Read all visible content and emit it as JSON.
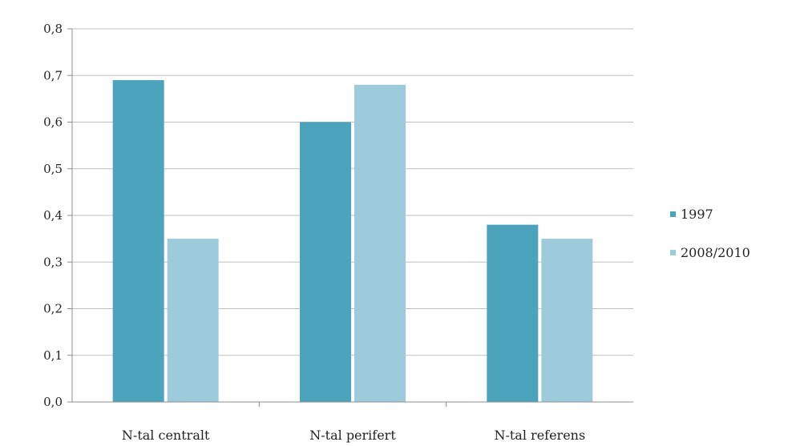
{
  "chart_data": {
    "type": "bar",
    "categories": [
      "N-tal centralt",
      "N-tal perifert",
      "N-tal referens"
    ],
    "series": [
      {
        "name": "1997",
        "values": [
          0.69,
          0.6,
          0.38
        ]
      },
      {
        "name": "2008/2010",
        "values": [
          0.35,
          0.68,
          0.35
        ]
      }
    ],
    "y_ticks": [
      "0,0",
      "0,1",
      "0,2",
      "0,3",
      "0,4",
      "0,5",
      "0,6",
      "0,7",
      "0,8"
    ],
    "ylim": [
      0,
      0.8
    ],
    "grid": true,
    "legend_position": "right",
    "colors": {
      "series_1997": "#4ba3bc",
      "series_2008_2010": "#9dcbdc",
      "grid": "#bfbfbf",
      "axis": "#8c8c8c"
    }
  }
}
